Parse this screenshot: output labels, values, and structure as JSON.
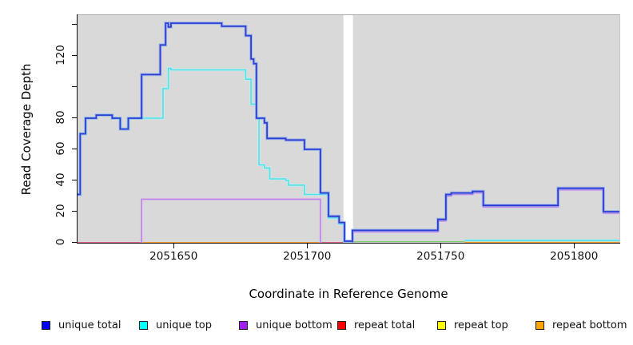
{
  "chart_data": {
    "type": "line",
    "subtype": "step-coverage-plot",
    "title": "",
    "xlabel": "Coordinate in Reference Genome",
    "ylabel": "Read Coverage Depth",
    "xlim": [
      2051614,
      2051817
    ],
    "ylim": [
      0,
      146.15
    ],
    "grid": "off",
    "panel_background": "#d9d9d9",
    "masked_gap_region": {
      "x_start": 2051713.6,
      "x_end": 2051717.2,
      "fill": "#ffffff"
    },
    "x_ticks": [
      {
        "value": 2051650,
        "label": "2051650"
      },
      {
        "value": 2051700,
        "label": "2051700"
      },
      {
        "value": 2051750,
        "label": "2051750"
      },
      {
        "value": 2051800,
        "label": "2051800"
      }
    ],
    "y_ticks": [
      {
        "value": 0,
        "label": "0"
      },
      {
        "value": 20,
        "label": "20"
      },
      {
        "value": 40,
        "label": "40"
      },
      {
        "value": 60,
        "label": "60"
      },
      {
        "value": 80,
        "label": "80"
      },
      {
        "value": 100,
        "label": ""
      },
      {
        "value": 120,
        "label": "120"
      },
      {
        "value": 140,
        "label": ""
      }
    ],
    "series": [
      {
        "name": "repeat total",
        "legend_color": "#ff0000",
        "line_color": "#e8638c",
        "width": 1.4,
        "parts": [
          [
            [
              2051614,
              0.15
            ],
            [
              2051638,
              0.15
            ]
          ],
          [
            [
              2051705,
              0.15
            ],
            [
              2051713.5,
              0.15
            ]
          ]
        ]
      },
      {
        "name": "repeat top",
        "legend_color": "#ffff00",
        "line_color": "#86cf7a",
        "note_color_is_overlap_blend_with_unique_top": true,
        "width": 1.4,
        "parts": [
          [
            [
              2051717.3,
              0.7
            ],
            [
              2051759,
              0.7
            ]
          ]
        ]
      },
      {
        "name": "repeat bottom",
        "legend_color": "#ffa500",
        "line_color": "#ff9e2e",
        "width": 1.5,
        "parts": [
          [
            [
              2051638,
              0.15
            ],
            [
              2051705,
              0.15
            ]
          ],
          [
            [
              2051759,
              0.3
            ],
            [
              2051817,
              0.3
            ]
          ]
        ]
      },
      {
        "name": "unique bottom",
        "legend_color": "#a020f0",
        "line_color": "#bd85e8",
        "halo": "#ddc4f2",
        "width": 1.6,
        "parts": [
          [
            [
              2051638,
              0
            ],
            [
              2051638,
              28
            ],
            [
              2051705,
              28
            ],
            [
              2051705,
              0
            ]
          ],
          [
            [
              2051717,
              0
            ],
            [
              2051717,
              7
            ],
            [
              2051749,
              7
            ],
            [
              2051749,
              14
            ],
            [
              2051752,
              14
            ],
            [
              2051752,
              30
            ],
            [
              2051754,
              30
            ],
            [
              2051754,
              31
            ],
            [
              2051762,
              31
            ],
            [
              2051762,
              32
            ],
            [
              2051766,
              32
            ],
            [
              2051766,
              23
            ],
            [
              2051794,
              23
            ],
            [
              2051794,
              34
            ],
            [
              2051811,
              34
            ],
            [
              2051811,
              19
            ],
            [
              2051817,
              19
            ]
          ]
        ]
      },
      {
        "name": "unique top",
        "legend_color": "#00ffff",
        "line_color": "#4fe3ea",
        "halo": "#b5f4f6",
        "width": 1.6,
        "parts": [
          [
            [
              2051614,
              31
            ],
            [
              2051615,
              31
            ],
            [
              2051615,
              70
            ],
            [
              2051617,
              70
            ],
            [
              2051617,
              80
            ],
            [
              2051621,
              80
            ],
            [
              2051621,
              82
            ],
            [
              2051627,
              82
            ],
            [
              2051627,
              80
            ],
            [
              2051630,
              80
            ],
            [
              2051630,
              73
            ],
            [
              2051633,
              73
            ],
            [
              2051633,
              80
            ],
            [
              2051646,
              80
            ],
            [
              2051646,
              99
            ],
            [
              2051648,
              99
            ],
            [
              2051648,
              112
            ],
            [
              2051649,
              112
            ],
            [
              2051649,
              111
            ],
            [
              2051677,
              111
            ],
            [
              2051677,
              105
            ],
            [
              2051679,
              105
            ],
            [
              2051679,
              89
            ],
            [
              2051681,
              89
            ],
            [
              2051681,
              80
            ],
            [
              2051682,
              80
            ],
            [
              2051682,
              50
            ],
            [
              2051684,
              50
            ],
            [
              2051684,
              48
            ],
            [
              2051686,
              48
            ],
            [
              2051686,
              41
            ],
            [
              2051692,
              41
            ],
            [
              2051692,
              40
            ],
            [
              2051693,
              40
            ],
            [
              2051693,
              37
            ],
            [
              2051699,
              37
            ],
            [
              2051699,
              31
            ],
            [
              2051708,
              31
            ],
            [
              2051708,
              16
            ],
            [
              2051712,
              16
            ],
            [
              2051712,
              12
            ],
            [
              2051714,
              12
            ],
            [
              2051714,
              1
            ],
            [
              2051717,
              1
            ]
          ],
          [
            [
              2051759,
              1.5
            ],
            [
              2051817,
              1.5
            ]
          ]
        ]
      },
      {
        "name": "unique total",
        "legend_color": "#0000ff",
        "line_color": "#2e3ed6",
        "halo": "#6f9ae8",
        "width": 1.8,
        "parts": [
          [
            [
              2051614,
              31
            ],
            [
              2051615,
              31
            ],
            [
              2051615,
              70
            ],
            [
              2051617,
              70
            ],
            [
              2051617,
              80
            ],
            [
              2051621,
              80
            ],
            [
              2051621,
              82
            ],
            [
              2051627,
              82
            ],
            [
              2051627,
              80
            ],
            [
              2051630,
              80
            ],
            [
              2051630,
              73
            ],
            [
              2051633,
              73
            ],
            [
              2051633,
              80
            ],
            [
              2051638,
              80
            ],
            [
              2051638,
              108
            ],
            [
              2051645,
              108
            ],
            [
              2051645,
              127
            ],
            [
              2051647,
              127
            ],
            [
              2051647,
              141
            ],
            [
              2051648,
              141
            ],
            [
              2051648,
              138.5
            ],
            [
              2051649,
              138.5
            ],
            [
              2051649,
              141
            ],
            [
              2051668,
              141
            ],
            [
              2051668,
              139
            ],
            [
              2051677,
              139
            ],
            [
              2051677,
              133
            ],
            [
              2051679,
              133
            ],
            [
              2051679,
              118
            ],
            [
              2051680,
              118
            ],
            [
              2051680,
              115
            ],
            [
              2051681,
              115
            ],
            [
              2051681,
              80
            ],
            [
              2051684,
              80
            ],
            [
              2051684,
              77
            ],
            [
              2051685,
              77
            ],
            [
              2051685,
              67
            ],
            [
              2051692,
              67
            ],
            [
              2051692,
              66
            ],
            [
              2051699,
              66
            ],
            [
              2051699,
              60
            ],
            [
              2051705,
              60
            ],
            [
              2051705,
              32
            ],
            [
              2051708,
              32
            ],
            [
              2051708,
              17
            ],
            [
              2051712,
              17
            ],
            [
              2051712,
              13
            ],
            [
              2051714,
              13
            ],
            [
              2051714,
              1
            ],
            [
              2051717,
              1
            ],
            [
              2051717,
              8
            ],
            [
              2051749,
              8
            ],
            [
              2051749,
              15
            ],
            [
              2051752,
              15
            ],
            [
              2051752,
              31
            ],
            [
              2051754,
              31
            ],
            [
              2051754,
              32
            ],
            [
              2051762,
              32
            ],
            [
              2051762,
              33
            ],
            [
              2051766,
              33
            ],
            [
              2051766,
              24
            ],
            [
              2051794,
              24
            ],
            [
              2051794,
              35
            ],
            [
              2051811,
              35
            ],
            [
              2051811,
              20
            ],
            [
              2051817,
              20
            ]
          ]
        ]
      }
    ],
    "legend": {
      "position": "bottom",
      "items": [
        {
          "label": "unique total",
          "color": "#0000ff"
        },
        {
          "label": "unique top",
          "color": "#00ffff"
        },
        {
          "label": "unique bottom",
          "color": "#a020f0"
        },
        {
          "label": "repeat total",
          "color": "#ff0000"
        },
        {
          "label": "repeat top",
          "color": "#ffff00"
        },
        {
          "label": "repeat bottom",
          "color": "#ffa500"
        }
      ]
    }
  }
}
